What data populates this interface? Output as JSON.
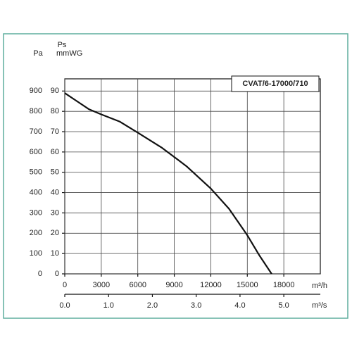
{
  "chart_data": {
    "type": "line",
    "series": [
      {
        "name": "CVAT/6-17000/710",
        "color": "#111111",
        "x": [
          0,
          1000,
          2000,
          3000,
          4500,
          6000,
          8000,
          10000,
          12000,
          13500,
          15000,
          16000,
          17000
        ],
        "values": [
          890,
          850,
          810,
          785,
          750,
          695,
          620,
          530,
          420,
          320,
          190,
          90,
          0
        ]
      }
    ],
    "xlabel": "m³/h",
    "x2label": "m³/s",
    "ylabel": "Pa",
    "y2label": "mmWG",
    "y2title": "Ps",
    "xlim": [
      0,
      21000
    ],
    "xticks": [
      0,
      3000,
      6000,
      9000,
      12000,
      15000,
      18000
    ],
    "x2lim": [
      0,
      5.8333
    ],
    "x2ticks": [
      {
        "value": 0,
        "label": "0.0"
      },
      {
        "value": 1,
        "label": "1.0"
      },
      {
        "value": 2,
        "label": "2.0"
      },
      {
        "value": 3,
        "label": "3.0"
      },
      {
        "value": 4,
        "label": "4.0"
      },
      {
        "value": 5,
        "label": "5.0"
      }
    ],
    "ylim": [
      0,
      960
    ],
    "yticks": [
      0,
      100,
      200,
      300,
      400,
      500,
      600,
      700,
      800,
      900
    ],
    "y2lim": [
      0,
      96
    ],
    "y2ticks": [
      0,
      10,
      20,
      30,
      40,
      50,
      60,
      70,
      80,
      90
    ],
    "grid": true
  }
}
